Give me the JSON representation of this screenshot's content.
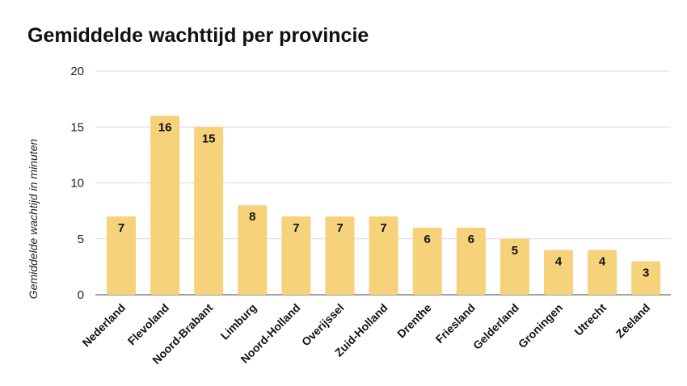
{
  "chart_data": {
    "type": "bar",
    "title": "Gemiddelde wachttijd per provincie",
    "xlabel": "",
    "ylabel": "Gemiddelde wachtijd in minuten",
    "categories": [
      "Nederland",
      "Flevoland",
      "Noord-Brabant",
      "Limburg",
      "Noord-Holland",
      "Overijssel",
      "Zuid-Holland",
      "Drenthe",
      "Friesland",
      "Gelderland",
      "Groningen",
      "Utrecht",
      "Zeeland"
    ],
    "values": [
      7,
      16,
      15,
      8,
      7,
      7,
      7,
      6,
      6,
      5,
      4,
      4,
      3
    ],
    "ylim": [
      0,
      20
    ],
    "yticks": [
      0,
      5,
      10,
      15,
      20
    ],
    "grid": true,
    "legend": "none",
    "bar_color": "#f6d27a",
    "grid_color": "#d9d9d9"
  }
}
